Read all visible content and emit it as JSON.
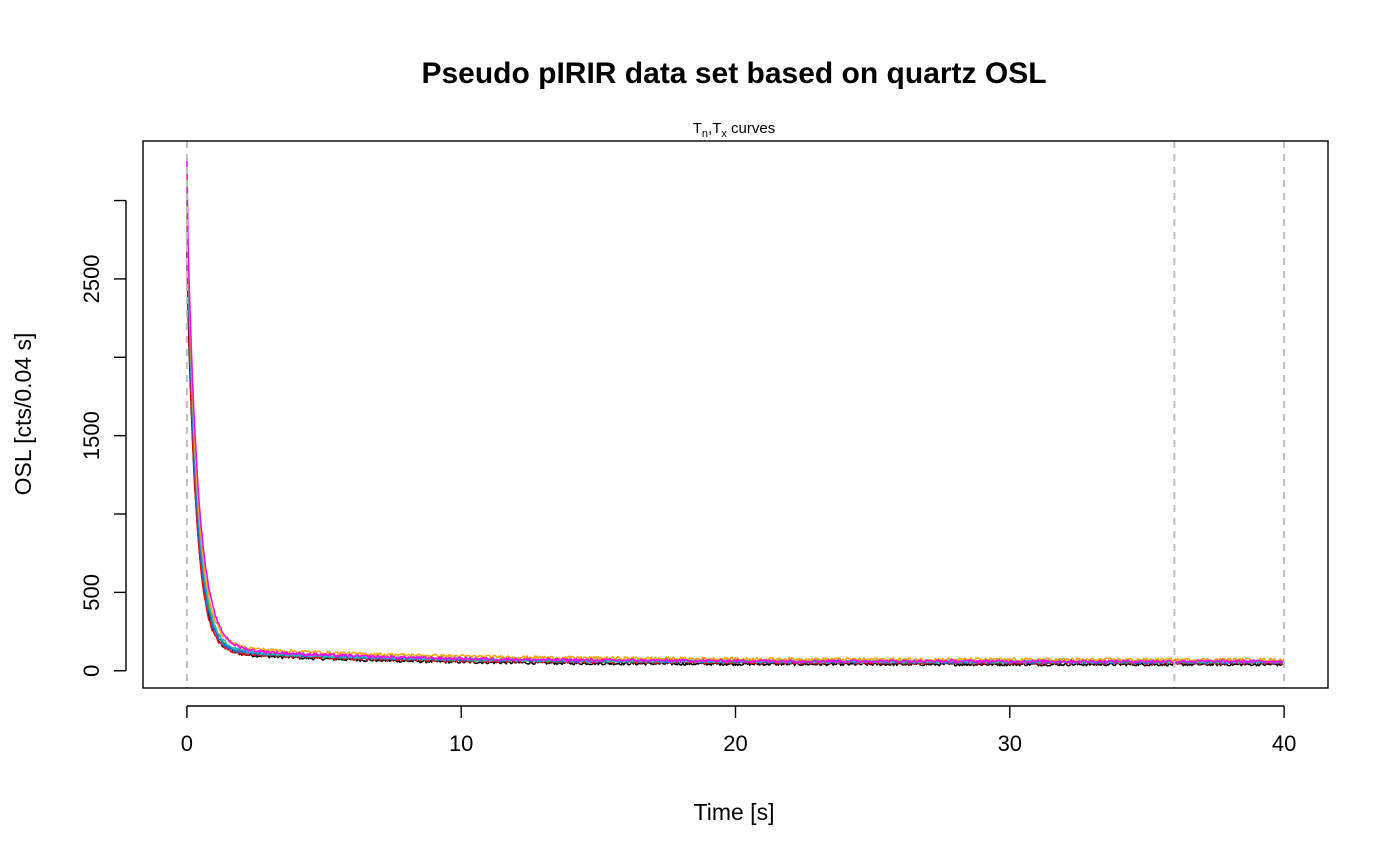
{
  "chart_data": {
    "type": "line",
    "title": "Pseudo pIRIR data set based on quartz OSL",
    "subtitle": {
      "main": "T",
      "sub1": "n",
      "comma": ",",
      "main2": "T",
      "sub2": "x",
      "rest": " curves"
    },
    "xlabel": "Time [s]",
    "ylabel": "OSL [cts/0.04 s]",
    "xlim": [
      -1.6,
      41.6
    ],
    "ylim": [
      -110,
      3380
    ],
    "x_ticks": [
      0,
      10,
      20,
      30,
      40
    ],
    "y_ticks": [
      0,
      500,
      1000,
      1500,
      2000,
      2500,
      3000
    ],
    "y_tick_labels": [
      "0",
      "500",
      "",
      "1500",
      "",
      "2500",
      ""
    ],
    "grid": false,
    "legend": "none",
    "vertical_reference_lines": {
      "x": [
        0,
        36,
        40
      ],
      "color": "#bebebe",
      "style": "dashed"
    },
    "series": [
      {
        "color": "#000000",
        "start": 2700,
        "fast": 2450,
        "tau": 0.34,
        "bg": 40,
        "mid": 85,
        "tau2": 6,
        "noise": 9
      },
      {
        "color": "#ff0000",
        "start": 2900,
        "fast": 2600,
        "tau": 0.32,
        "bg": 50,
        "mid": 80,
        "tau2": 6,
        "noise": 9
      },
      {
        "color": "#22aa22",
        "start": 3000,
        "fast": 2680,
        "tau": 0.35,
        "bg": 55,
        "mid": 85,
        "tau2": 6,
        "noise": 9
      },
      {
        "color": "#2266dd",
        "start": 3050,
        "fast": 2720,
        "tau": 0.33,
        "bg": 55,
        "mid": 85,
        "tau2": 6,
        "noise": 9
      },
      {
        "color": "#22bbbb",
        "start": 3100,
        "fast": 2760,
        "tau": 0.36,
        "bg": 58,
        "mid": 85,
        "tau2": 6,
        "noise": 9
      },
      {
        "color": "#ffa500",
        "start": 3150,
        "fast": 2800,
        "tau": 0.37,
        "bg": 70,
        "mid": 95,
        "tau2": 7,
        "noise": 10
      },
      {
        "color": "#ff00ff",
        "start": 3280,
        "fast": 2860,
        "tau": 0.4,
        "bg": 60,
        "mid": 95,
        "tau2": 6,
        "noise": 9
      }
    ]
  }
}
